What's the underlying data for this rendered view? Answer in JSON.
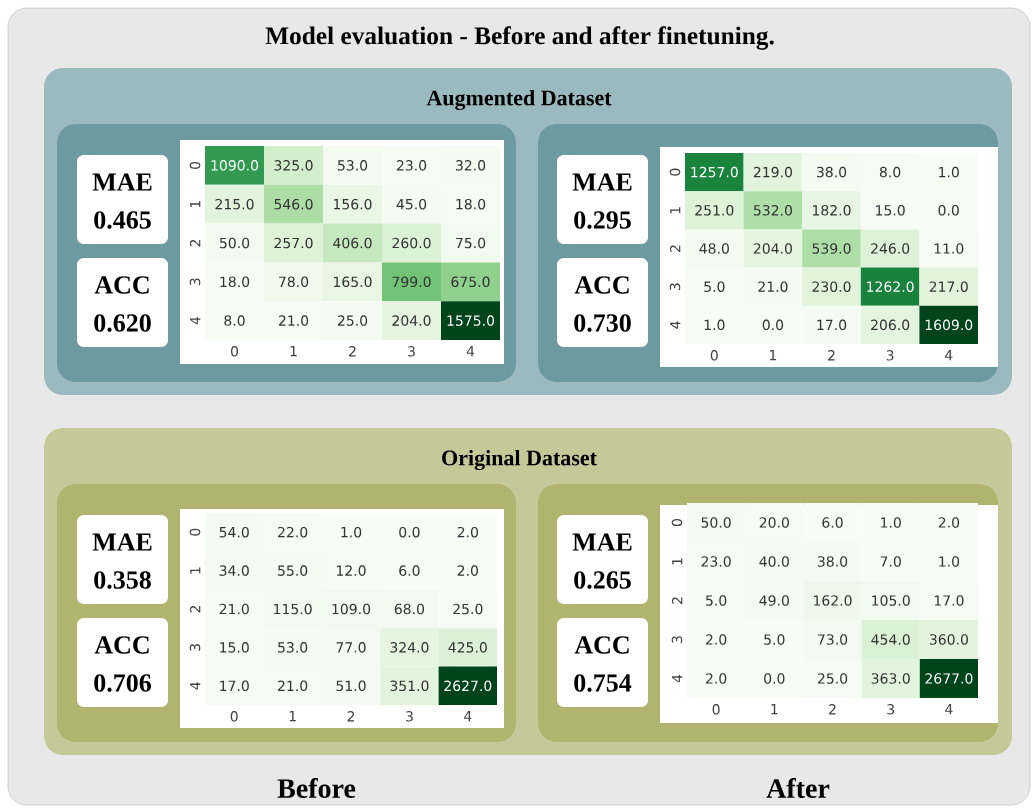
{
  "chart_data": [
    {
      "type": "heatmap",
      "title": "Model evaluation - Before and after finetuning.",
      "subtitle": "Augmented Dataset",
      "annotations": [
        "MAE",
        "0.465",
        "ACC",
        "0.620"
      ],
      "categories": [
        "0",
        "1",
        "2",
        "3",
        "4"
      ],
      "y_categories": [
        "0",
        "1",
        "2",
        "3",
        "4"
      ],
      "cells": [
        [
          1090,
          325,
          53,
          23,
          32
        ],
        [
          215,
          546,
          156,
          45,
          18
        ],
        [
          50,
          257,
          406,
          260,
          75
        ],
        [
          18,
          78,
          165,
          799,
          675
        ],
        [
          8,
          21,
          25,
          204,
          1575
        ]
      ],
      "cell_labels": [
        [
          "1090.0",
          "325.0",
          "53.0",
          "23.0",
          "32.0"
        ],
        [
          "215.0",
          "546.0",
          "156.0",
          "45.0",
          "18.0"
        ],
        [
          "50.0",
          "257.0",
          "406.0",
          "260.0",
          "75.0"
        ],
        [
          "18.0",
          "78.0",
          "165.0",
          "799.0",
          "675.0"
        ],
        [
          "8.0",
          "21.0",
          "25.0",
          "204.0",
          "1575.0"
        ]
      ]
    },
    {
      "type": "heatmap",
      "annotations": [
        "MAE",
        "0.295",
        "ACC",
        "0.730"
      ],
      "categories": [
        "0",
        "1",
        "2",
        "3",
        "4"
      ],
      "y_categories": [
        "0",
        "1",
        "2",
        "3",
        "4"
      ],
      "cells": [
        [
          1257,
          219,
          38,
          8,
          1
        ],
        [
          251,
          532,
          182,
          15,
          0
        ],
        [
          48,
          204,
          539,
          246,
          11
        ],
        [
          5,
          21,
          230,
          1262,
          217
        ],
        [
          1,
          0,
          17,
          206,
          1609
        ]
      ],
      "cell_labels": [
        [
          "1257.0",
          "219.0",
          "38.0",
          "8.0",
          "1.0"
        ],
        [
          "251.0",
          "532.0",
          "182.0",
          "15.0",
          "0.0"
        ],
        [
          "48.0",
          "204.0",
          "539.0",
          "246.0",
          "11.0"
        ],
        [
          "5.0",
          "21.0",
          "230.0",
          "1262.0",
          "217.0"
        ],
        [
          "1.0",
          "0.0",
          "17.0",
          "206.0",
          "1609.0"
        ]
      ]
    },
    {
      "type": "heatmap",
      "subtitle": "Original Dataset",
      "xlabel": "Before",
      "annotations": [
        "MAE",
        "0.358",
        "ACC",
        "0.706"
      ],
      "categories": [
        "0",
        "1",
        "2",
        "3",
        "4"
      ],
      "y_categories": [
        "0",
        "1",
        "2",
        "3",
        "4"
      ],
      "cells": [
        [
          54,
          22,
          1,
          0,
          2
        ],
        [
          34,
          55,
          12,
          6,
          2
        ],
        [
          21,
          115,
          109,
          68,
          25
        ],
        [
          15,
          53,
          77,
          324,
          425
        ],
        [
          17,
          21,
          51,
          351,
          2627
        ]
      ],
      "cell_labels": [
        [
          "54.0",
          "22.0",
          "1.0",
          "0.0",
          "2.0"
        ],
        [
          "34.0",
          "55.0",
          "12.0",
          "6.0",
          "2.0"
        ],
        [
          "21.0",
          "115.0",
          "109.0",
          "68.0",
          "25.0"
        ],
        [
          "15.0",
          "53.0",
          "77.0",
          "324.0",
          "425.0"
        ],
        [
          "17.0",
          "21.0",
          "51.0",
          "351.0",
          "2627.0"
        ]
      ]
    },
    {
      "type": "heatmap",
      "xlabel": "After",
      "annotations": [
        "MAE",
        "0.265",
        "ACC",
        "0.754"
      ],
      "categories": [
        "0",
        "1",
        "2",
        "3",
        "4"
      ],
      "y_categories": [
        "0",
        "1",
        "2",
        "3",
        "4"
      ],
      "cells": [
        [
          50,
          20,
          6,
          1,
          2
        ],
        [
          23,
          40,
          38,
          7,
          1
        ],
        [
          5,
          49,
          162,
          105,
          17
        ],
        [
          2,
          5,
          73,
          454,
          360
        ],
        [
          2,
          0,
          25,
          363,
          2677
        ]
      ],
      "cell_labels": [
        [
          "50.0",
          "20.0",
          "6.0",
          "1.0",
          "2.0"
        ],
        [
          "23.0",
          "40.0",
          "38.0",
          "7.0",
          "1.0"
        ],
        [
          "5.0",
          "49.0",
          "162.0",
          "105.0",
          "17.0"
        ],
        [
          "2.0",
          "5.0",
          "73.0",
          "454.0",
          "360.0"
        ],
        [
          "2.0",
          "0.0",
          "25.0",
          "363.0",
          "2677.0"
        ]
      ]
    }
  ]
}
